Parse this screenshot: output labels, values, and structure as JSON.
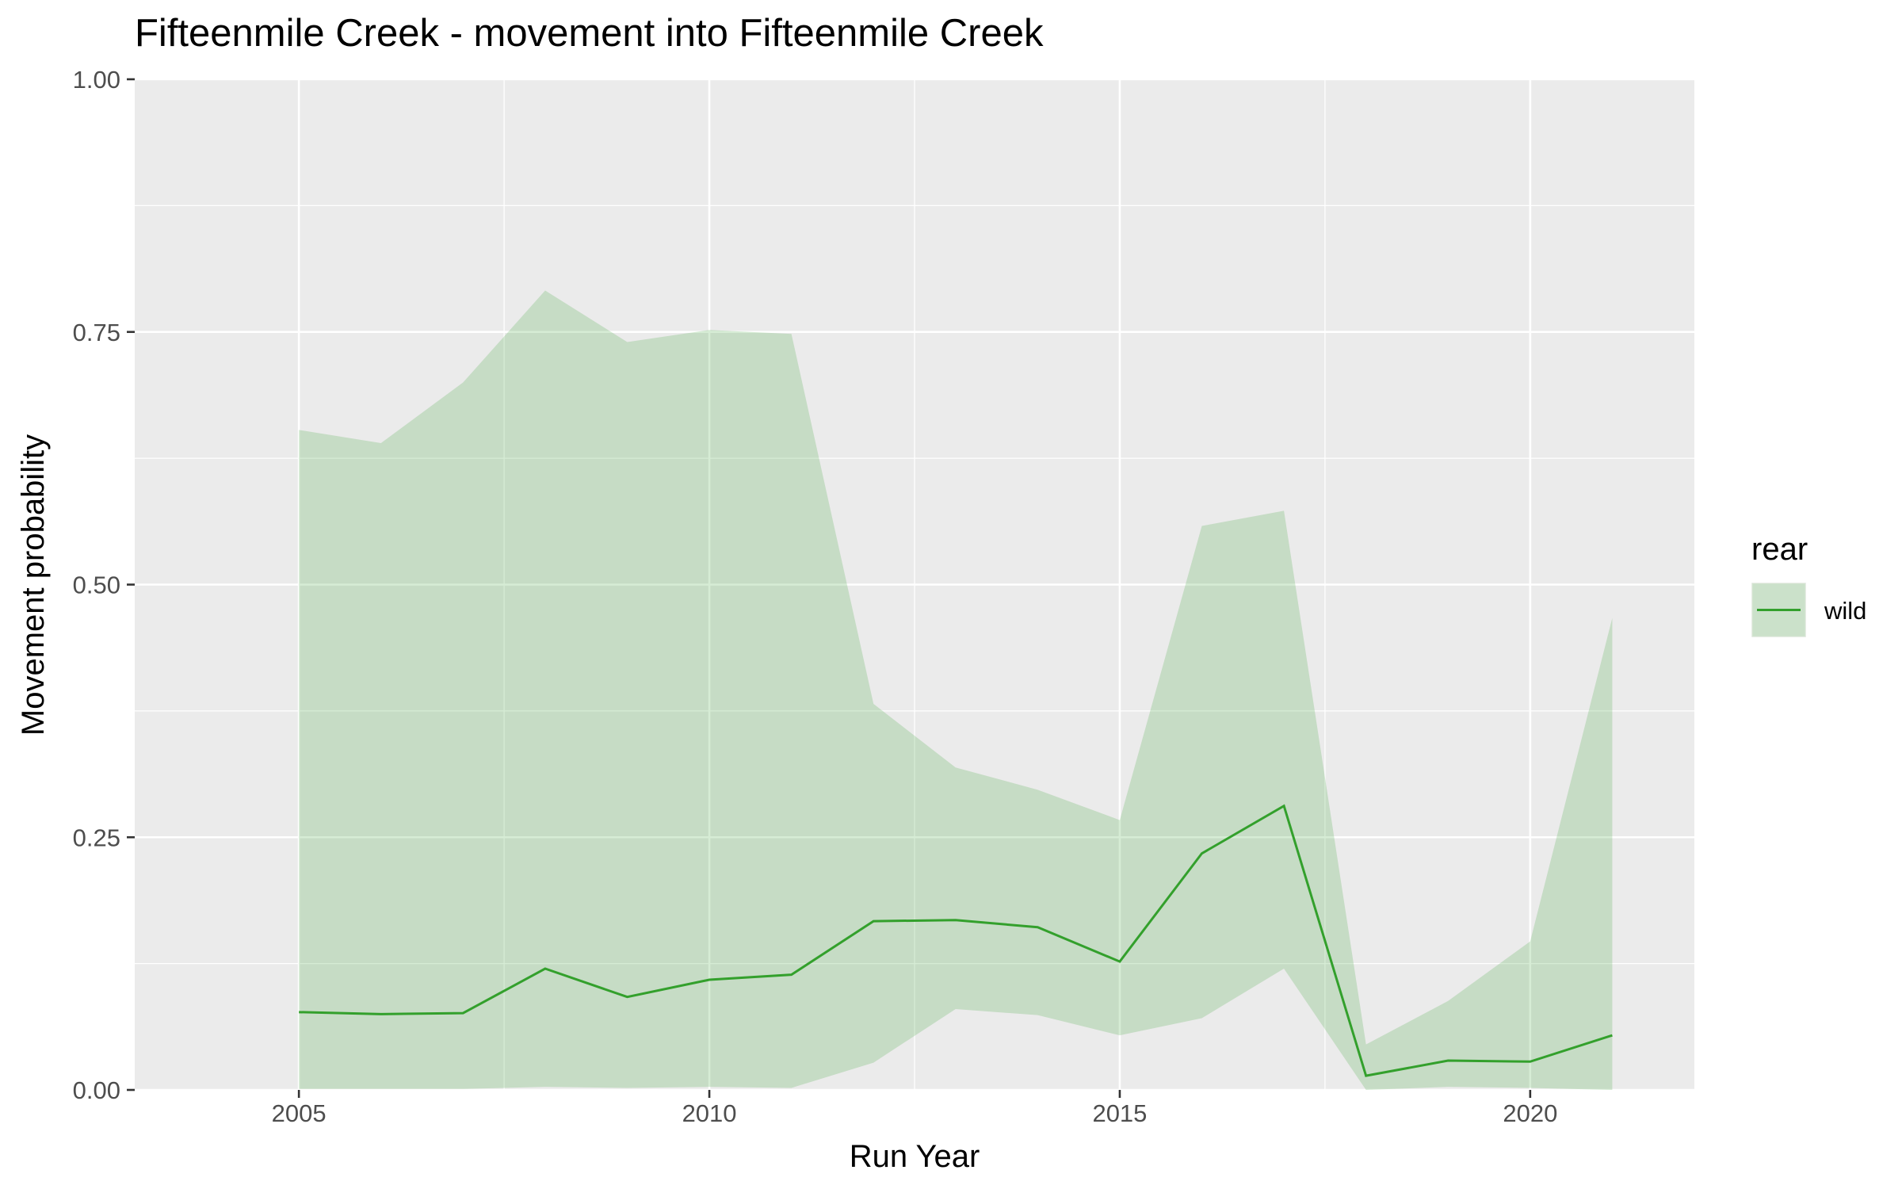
{
  "chart_data": {
    "type": "line",
    "title": "Fifteenmile Creek - movement into Fifteenmile Creek",
    "xlabel": "Run Year",
    "ylabel": "Movement probability",
    "xlim": [
      2003,
      2022
    ],
    "ylim": [
      0,
      1
    ],
    "x_ticks": [
      2005,
      2010,
      2015,
      2020
    ],
    "x_tick_labels": [
      "2005",
      "2010",
      "2015",
      "2020"
    ],
    "y_ticks": [
      0,
      0.25,
      0.5,
      0.75,
      1
    ],
    "y_tick_labels": [
      "0.00",
      "0.25",
      "0.50",
      "0.75",
      "1.00"
    ],
    "grid": true,
    "legend": {
      "title": "rear",
      "position": "right",
      "entries": [
        "wild"
      ]
    },
    "x": [
      2005,
      2006,
      2007,
      2008,
      2009,
      2010,
      2011,
      2012,
      2013,
      2014,
      2015,
      2016,
      2017,
      2018,
      2019,
      2020,
      2021
    ],
    "series": [
      {
        "name": "wild",
        "color": "#33a02c",
        "ribbon_color": "#33a02c",
        "values": [
          0.077,
          0.075,
          0.076,
          0.12,
          0.092,
          0.109,
          0.114,
          0.167,
          0.168,
          0.161,
          0.127,
          0.234,
          0.281,
          0.014,
          0.029,
          0.028,
          0.054
        ],
        "lower": [
          0.001,
          0.001,
          0.001,
          0.003,
          0.002,
          0.003,
          0.002,
          0.027,
          0.08,
          0.074,
          0.054,
          0.071,
          0.12,
          0.0,
          0.003,
          0.002,
          0.0
        ],
        "upper": [
          0.653,
          0.64,
          0.7,
          0.791,
          0.74,
          0.752,
          0.748,
          0.382,
          0.319,
          0.297,
          0.267,
          0.558,
          0.573,
          0.045,
          0.088,
          0.147,
          0.467
        ]
      }
    ]
  }
}
